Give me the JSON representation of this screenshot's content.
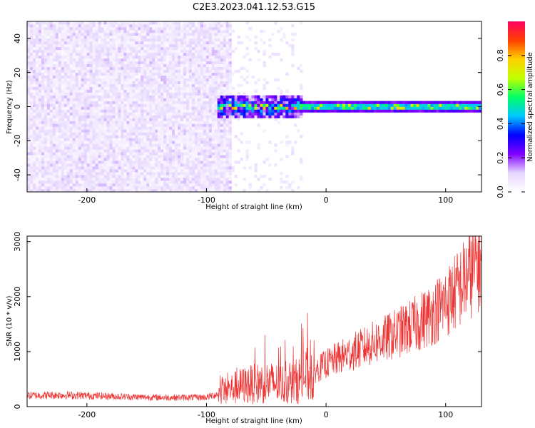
{
  "chart_data": [
    {
      "type": "heatmap",
      "title": "C2E3.2023.041.12.53.G15",
      "xlabel": "Height of straight line (km)",
      "ylabel": "Frequency (Hz)",
      "xlim": [
        -250,
        130
      ],
      "ylim": [
        -50,
        50
      ],
      "x_ticks": [
        -200,
        -100,
        0,
        100
      ],
      "y_ticks": [
        -40,
        -20,
        0,
        20,
        40
      ],
      "colorbar": {
        "label": "Normalized spectral amplitude",
        "range": [
          0,
          1
        ],
        "ticks": [
          0.0,
          0.2,
          0.4,
          0.6,
          0.8
        ],
        "colormap": [
          "#ffffff",
          "#e6d6ff",
          "#8000ff",
          "#0000ff",
          "#00c8ff",
          "#00ff66",
          "#c0ff00",
          "#ffd000",
          "#ff4000",
          "#ff0060"
        ]
      },
      "noise_region": {
        "x_range": [
          -250,
          -80
        ],
        "amplitude": 0.1
      },
      "signal_band": {
        "x_range": [
          -90,
          130
        ],
        "center_freq_hz": 0,
        "half_width_hz": 4,
        "peak_amplitude": 0.9
      },
      "grid": false
    },
    {
      "type": "line",
      "xlabel": "Height of straight line (km)",
      "ylabel": "SNR (10 * v/v)",
      "xlim": [
        -250,
        130
      ],
      "ylim": [
        0,
        3100
      ],
      "x_ticks": [
        -200,
        -100,
        0,
        100
      ],
      "y_ticks": [
        0,
        1000,
        2000,
        3000
      ],
      "color": "#ee3333",
      "series": [
        {
          "x": [
            -250,
            -225,
            -200,
            -175,
            -150,
            -125,
            -100,
            -90,
            -80,
            -70,
            -60,
            -50,
            -40,
            -30,
            -20,
            -10,
            0,
            10,
            20,
            30,
            40,
            50,
            60,
            70,
            80,
            90,
            100,
            110,
            120,
            130
          ],
          "values": [
            200,
            210,
            200,
            185,
            170,
            165,
            170,
            230,
            320,
            380,
            410,
            440,
            420,
            400,
            520,
            640,
            780,
            880,
            970,
            1060,
            1160,
            1240,
            1340,
            1440,
            1560,
            1710,
            1890,
            2120,
            2400,
            2700
          ]
        }
      ],
      "grid": false
    }
  ]
}
